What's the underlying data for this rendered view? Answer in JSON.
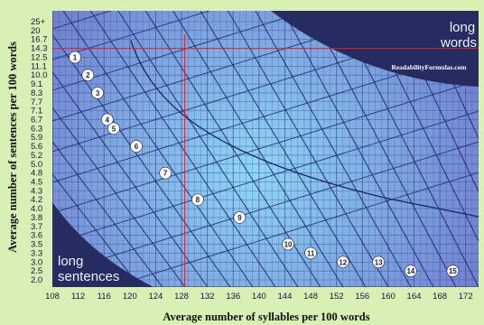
{
  "chart_data": {
    "type": "line",
    "xlabel": "Average number of syllables per 100 words",
    "ylabel": "Average number of sentences per 100 words",
    "x_ticks": [
      "108",
      "112",
      "116",
      "120",
      "124",
      "128",
      "132",
      "136",
      "140",
      "144",
      "148",
      "152",
      "156",
      "160",
      "164",
      "168",
      "172"
    ],
    "y_ticks": [
      "2.0",
      "2.5",
      "3.0",
      "3.3",
      "3.5",
      "3.6",
      "3.7",
      "3.8",
      "4.0",
      "4.2",
      "4.3",
      "4.5",
      "4.8",
      "5.0",
      "5.2",
      "5.6",
      "5.9",
      "6.3",
      "6.7",
      "7.1",
      "7.7",
      "8.3",
      "9.1",
      "10.0",
      "11.1",
      "12.5",
      "14.3",
      "16.7",
      "20",
      "25+"
    ],
    "xlim": [
      108,
      174
    ],
    "grid": true,
    "corner_labels": {
      "top_right": [
        "long",
        "words"
      ],
      "bottom_left": [
        "long",
        "sentences"
      ]
    },
    "watermark": "ReadabilityFormulas.com",
    "grade_levels": [
      {
        "label": "1",
        "x": 111.5,
        "y": "12.5"
      },
      {
        "label": "2",
        "x": 113.5,
        "y": "10.0"
      },
      {
        "label": "3",
        "x": 115,
        "y": "8.3"
      },
      {
        "label": "4",
        "x": 116.5,
        "y": "6.7"
      },
      {
        "label": "5",
        "x": 117.5,
        "y": "6.3"
      },
      {
        "label": "6",
        "x": 121,
        "y": "5.6"
      },
      {
        "label": "7",
        "x": 125.5,
        "y": "4.8"
      },
      {
        "label": "8",
        "x": 130.5,
        "y": "4.2"
      },
      {
        "label": "9",
        "x": 137,
        "y": "3.8"
      },
      {
        "label": "10",
        "x": 144.5,
        "y": "3.5"
      },
      {
        "label": "11",
        "x": 148,
        "y": "3.3"
      },
      {
        "label": "12",
        "x": 153,
        "y": "3.0"
      },
      {
        "label": "13",
        "x": 158.5,
        "y": "3.0"
      },
      {
        "label": "14",
        "x": 163.5,
        "y": "2.5"
      },
      {
        "label": "15",
        "x": 170,
        "y": "2.5"
      }
    ],
    "crosshair": {
      "x": 128.5,
      "y": "14.3"
    },
    "line_color": "#1c2468",
    "grid_color": "#3b4a9e",
    "crosshair_color": "#e0202a",
    "background_light": "#8ed8f5",
    "background_dark": "#6b6fc8",
    "corner_color": "#262c60"
  }
}
